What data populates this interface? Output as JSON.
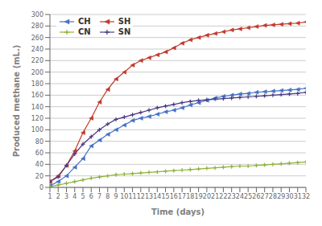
{
  "chart_data": {
    "type": "line",
    "xlabel": "Time (days)",
    "ylabel": "Produced methane (mL.)",
    "x": [
      1,
      2,
      3,
      4,
      5,
      6,
      7,
      8,
      9,
      10,
      11,
      12,
      13,
      14,
      15,
      16,
      17,
      18,
      19,
      20,
      21,
      22,
      23,
      24,
      25,
      26,
      27,
      28,
      29,
      30,
      31,
      32
    ],
    "xlim": [
      1,
      32
    ],
    "xticks": [
      1,
      2,
      3,
      4,
      5,
      6,
      7,
      8,
      9,
      10,
      11,
      12,
      13,
      14,
      15,
      16,
      17,
      18,
      19,
      20,
      21,
      22,
      23,
      24,
      25,
      26,
      27,
      28,
      29,
      30,
      31,
      32
    ],
    "ylim": [
      0,
      300
    ],
    "yticks": [
      0,
      20,
      40,
      60,
      80,
      100,
      120,
      140,
      160,
      180,
      200,
      220,
      240,
      260,
      280,
      300
    ],
    "grid": true,
    "legend": "upper left",
    "series": [
      {
        "name": "CH",
        "color": "#4472C4",
        "marker": "triangle-left",
        "values": [
          3,
          10,
          20,
          35,
          50,
          72,
          82,
          92,
          100,
          108,
          116,
          120,
          123,
          127,
          131,
          134,
          138,
          143,
          147,
          151,
          155,
          158,
          160,
          162,
          163,
          165,
          166,
          167,
          168,
          169,
          170,
          172
        ]
      },
      {
        "name": "SH",
        "color": "#C0392B",
        "marker": "triangle-left",
        "values": [
          10,
          20,
          38,
          63,
          95,
          120,
          148,
          170,
          188,
          200,
          212,
          220,
          225,
          230,
          235,
          242,
          250,
          256,
          260,
          264,
          267,
          270,
          273,
          275,
          277,
          279,
          281,
          282,
          283,
          284,
          285,
          287
        ]
      },
      {
        "name": "CN",
        "color": "#8DB33A",
        "marker": "plus",
        "values": [
          2,
          4,
          7,
          10,
          13,
          16,
          18,
          20,
          22,
          23,
          24,
          25,
          26,
          27,
          28,
          29,
          30,
          31,
          32,
          33,
          34,
          35,
          36,
          37,
          37,
          38,
          39,
          40,
          41,
          42,
          43,
          44
        ]
      },
      {
        "name": "SN",
        "color": "#4B3785",
        "marker": "plus",
        "values": [
          10,
          18,
          38,
          58,
          75,
          88,
          100,
          110,
          118,
          122,
          126,
          130,
          134,
          138,
          141,
          144,
          147,
          149,
          151,
          152,
          153,
          154,
          155,
          156,
          157,
          158,
          159,
          160,
          161,
          162,
          163,
          165
        ]
      }
    ]
  }
}
